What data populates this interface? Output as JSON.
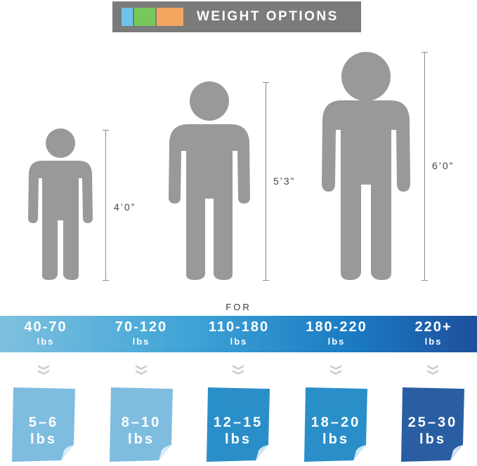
{
  "title": {
    "text": "WEIGHT OPTIONS",
    "swatches": [
      "#6ec3ea",
      "#76c75c",
      "#f2a65e"
    ],
    "bar_color": "#7b7b7b"
  },
  "figures": [
    {
      "name": "child",
      "height_label": "4’0”"
    },
    {
      "name": "teen",
      "height_label": "5’3”"
    },
    {
      "name": "adult",
      "height_label": "6’0”"
    }
  ],
  "for_label": "FOR",
  "ranges": [
    {
      "value": "40-70",
      "unit": "lbs"
    },
    {
      "value": "70-120",
      "unit": "lbs"
    },
    {
      "value": "110-180",
      "unit": "lbs"
    },
    {
      "value": "180-220",
      "unit": "lbs"
    },
    {
      "value": "220+",
      "unit": "lbs"
    }
  ],
  "cards": [
    {
      "value": "5–6",
      "unit": "lbs",
      "color": "#7fbde0"
    },
    {
      "value": "8–10",
      "unit": "lbs",
      "color": "#7fbde0"
    },
    {
      "value": "12–15",
      "unit": "lbs",
      "color": "#2a8fc9"
    },
    {
      "value": "18–20",
      "unit": "lbs",
      "color": "#2a8fc9"
    },
    {
      "value": "25–30",
      "unit": "lbs",
      "color": "#2a5ea3"
    }
  ]
}
